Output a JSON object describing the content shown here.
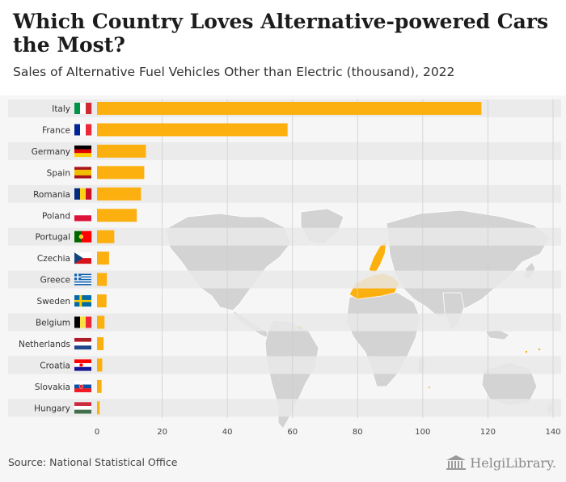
{
  "header": {
    "title": "Which Country Loves Alternative-powered Cars the Most?",
    "subtitle": "Sales of Alternative Fuel Vehicles Other than Electric (thousand), 2022"
  },
  "footer": {
    "source": "Source: National Statistical Office",
    "brand": "HelgiLibrary."
  },
  "colors": {
    "bar": "#FCB00F",
    "stripe": "#e9e9e9",
    "map_land": "#d3d3d3",
    "map_highlight": "#FCB00F"
  },
  "chart_data": {
    "type": "bar",
    "orientation": "horizontal",
    "title": "Which Country Loves Alternative-powered Cars the Most?",
    "subtitle": "Sales of Alternative Fuel Vehicles Other than Electric (thousand), 2022",
    "xlabel": "",
    "ylabel": "",
    "xlim": [
      0,
      140
    ],
    "xticks": [
      0,
      20,
      40,
      60,
      80,
      100,
      120,
      140
    ],
    "grid": true,
    "categories": [
      "Italy",
      "France",
      "Germany",
      "Spain",
      "Romania",
      "Poland",
      "Portugal",
      "Czechia",
      "Greece",
      "Sweden",
      "Belgium",
      "Netherlands",
      "Croatia",
      "Slovakia",
      "Hungary"
    ],
    "flags": [
      "flag-italy-icon",
      "flag-france-icon",
      "flag-germany-icon",
      "flag-spain-icon",
      "flag-romania-icon",
      "flag-poland-icon",
      "flag-portugal-icon",
      "flag-czechia-icon",
      "flag-greece-icon",
      "flag-sweden-icon",
      "flag-belgium-icon",
      "flag-netherlands-icon",
      "flag-croatia-icon",
      "flag-slovakia-icon",
      "flag-hungary-icon"
    ],
    "values": [
      118.0,
      58.5,
      15.0,
      14.5,
      13.5,
      12.2,
      5.3,
      3.7,
      3.0,
      2.9,
      2.3,
      2.0,
      1.6,
      1.4,
      0.8
    ]
  }
}
